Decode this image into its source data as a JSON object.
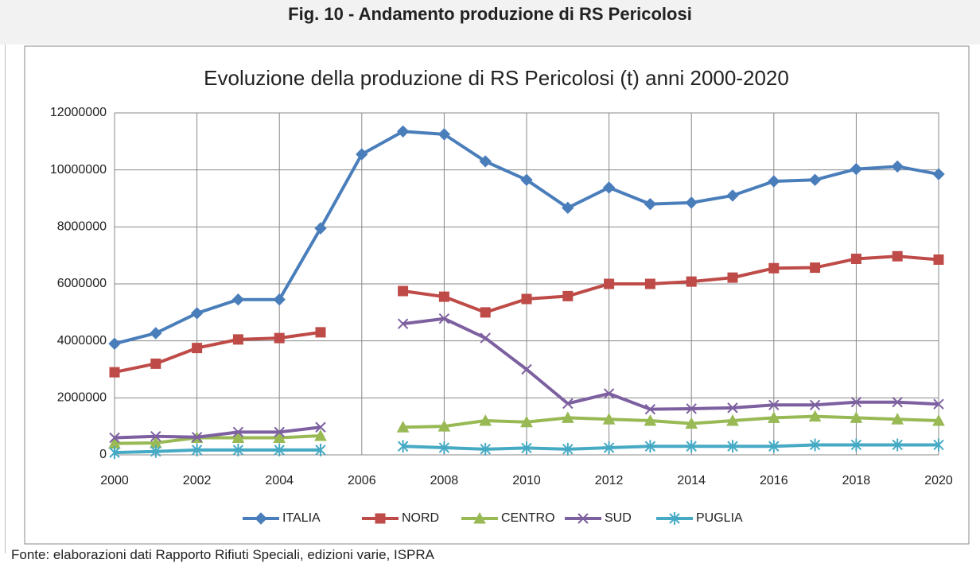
{
  "header": {
    "title": "Fig. 10 - Andamento produzione di RS Pericolosi"
  },
  "chart_data": {
    "type": "line",
    "title": "Evoluzione della produzione di RS Pericolosi (t) anni 2000-2020",
    "x": [
      2000,
      2001,
      2002,
      2003,
      2004,
      2005,
      2006,
      2007,
      2008,
      2009,
      2010,
      2011,
      2012,
      2013,
      2014,
      2015,
      2016,
      2017,
      2018,
      2019,
      2020
    ],
    "xlim": [
      2000,
      2020
    ],
    "xticks": [
      2000,
      2002,
      2004,
      2006,
      2008,
      2010,
      2012,
      2014,
      2016,
      2018,
      2020
    ],
    "ylim": [
      0,
      12000000
    ],
    "yticks": [
      0,
      2000000,
      4000000,
      6000000,
      8000000,
      10000000,
      12000000
    ],
    "grid": true,
    "legend": "bottom",
    "series": [
      {
        "name": "ITALIA",
        "color": "#4a7ebb",
        "marker": "diamond",
        "values": [
          3900000,
          4270000,
          4970000,
          5450000,
          5450000,
          7950000,
          10550000,
          11350000,
          11250000,
          10300000,
          9650000,
          8670000,
          9380000,
          8800000,
          8850000,
          9100000,
          9600000,
          9650000,
          10030000,
          10120000,
          9850000
        ]
      },
      {
        "name": "NORD",
        "color": "#be4b48",
        "marker": "square",
        "values": [
          2900000,
          3200000,
          3750000,
          4050000,
          4100000,
          4300000,
          null,
          5750000,
          5550000,
          5000000,
          5470000,
          5570000,
          6000000,
          6000000,
          6080000,
          6220000,
          6550000,
          6570000,
          6880000,
          6970000,
          6850000
        ]
      },
      {
        "name": "CENTRO",
        "color": "#98b954",
        "marker": "triangle",
        "values": [
          400000,
          420000,
          600000,
          600000,
          600000,
          670000,
          null,
          970000,
          1000000,
          1200000,
          1150000,
          1300000,
          1250000,
          1200000,
          1100000,
          1200000,
          1300000,
          1350000,
          1300000,
          1250000,
          1200000
        ]
      },
      {
        "name": "SUD",
        "color": "#7d60a0",
        "marker": "x",
        "values": [
          600000,
          650000,
          620000,
          800000,
          800000,
          970000,
          null,
          4600000,
          4780000,
          4100000,
          3000000,
          1800000,
          2150000,
          1600000,
          1620000,
          1650000,
          1750000,
          1750000,
          1850000,
          1850000,
          1780000
        ]
      },
      {
        "name": "PUGLIA",
        "color": "#46aac5",
        "marker": "asterisk",
        "values": [
          80000,
          120000,
          170000,
          170000,
          170000,
          170000,
          null,
          300000,
          250000,
          200000,
          240000,
          200000,
          250000,
          300000,
          300000,
          300000,
          300000,
          350000,
          350000,
          350000,
          350000
        ]
      }
    ]
  },
  "footer": {
    "source": "Fonte: elaborazioni dati Rapporto Rifiuti Speciali, edizioni varie, ISPRA"
  }
}
